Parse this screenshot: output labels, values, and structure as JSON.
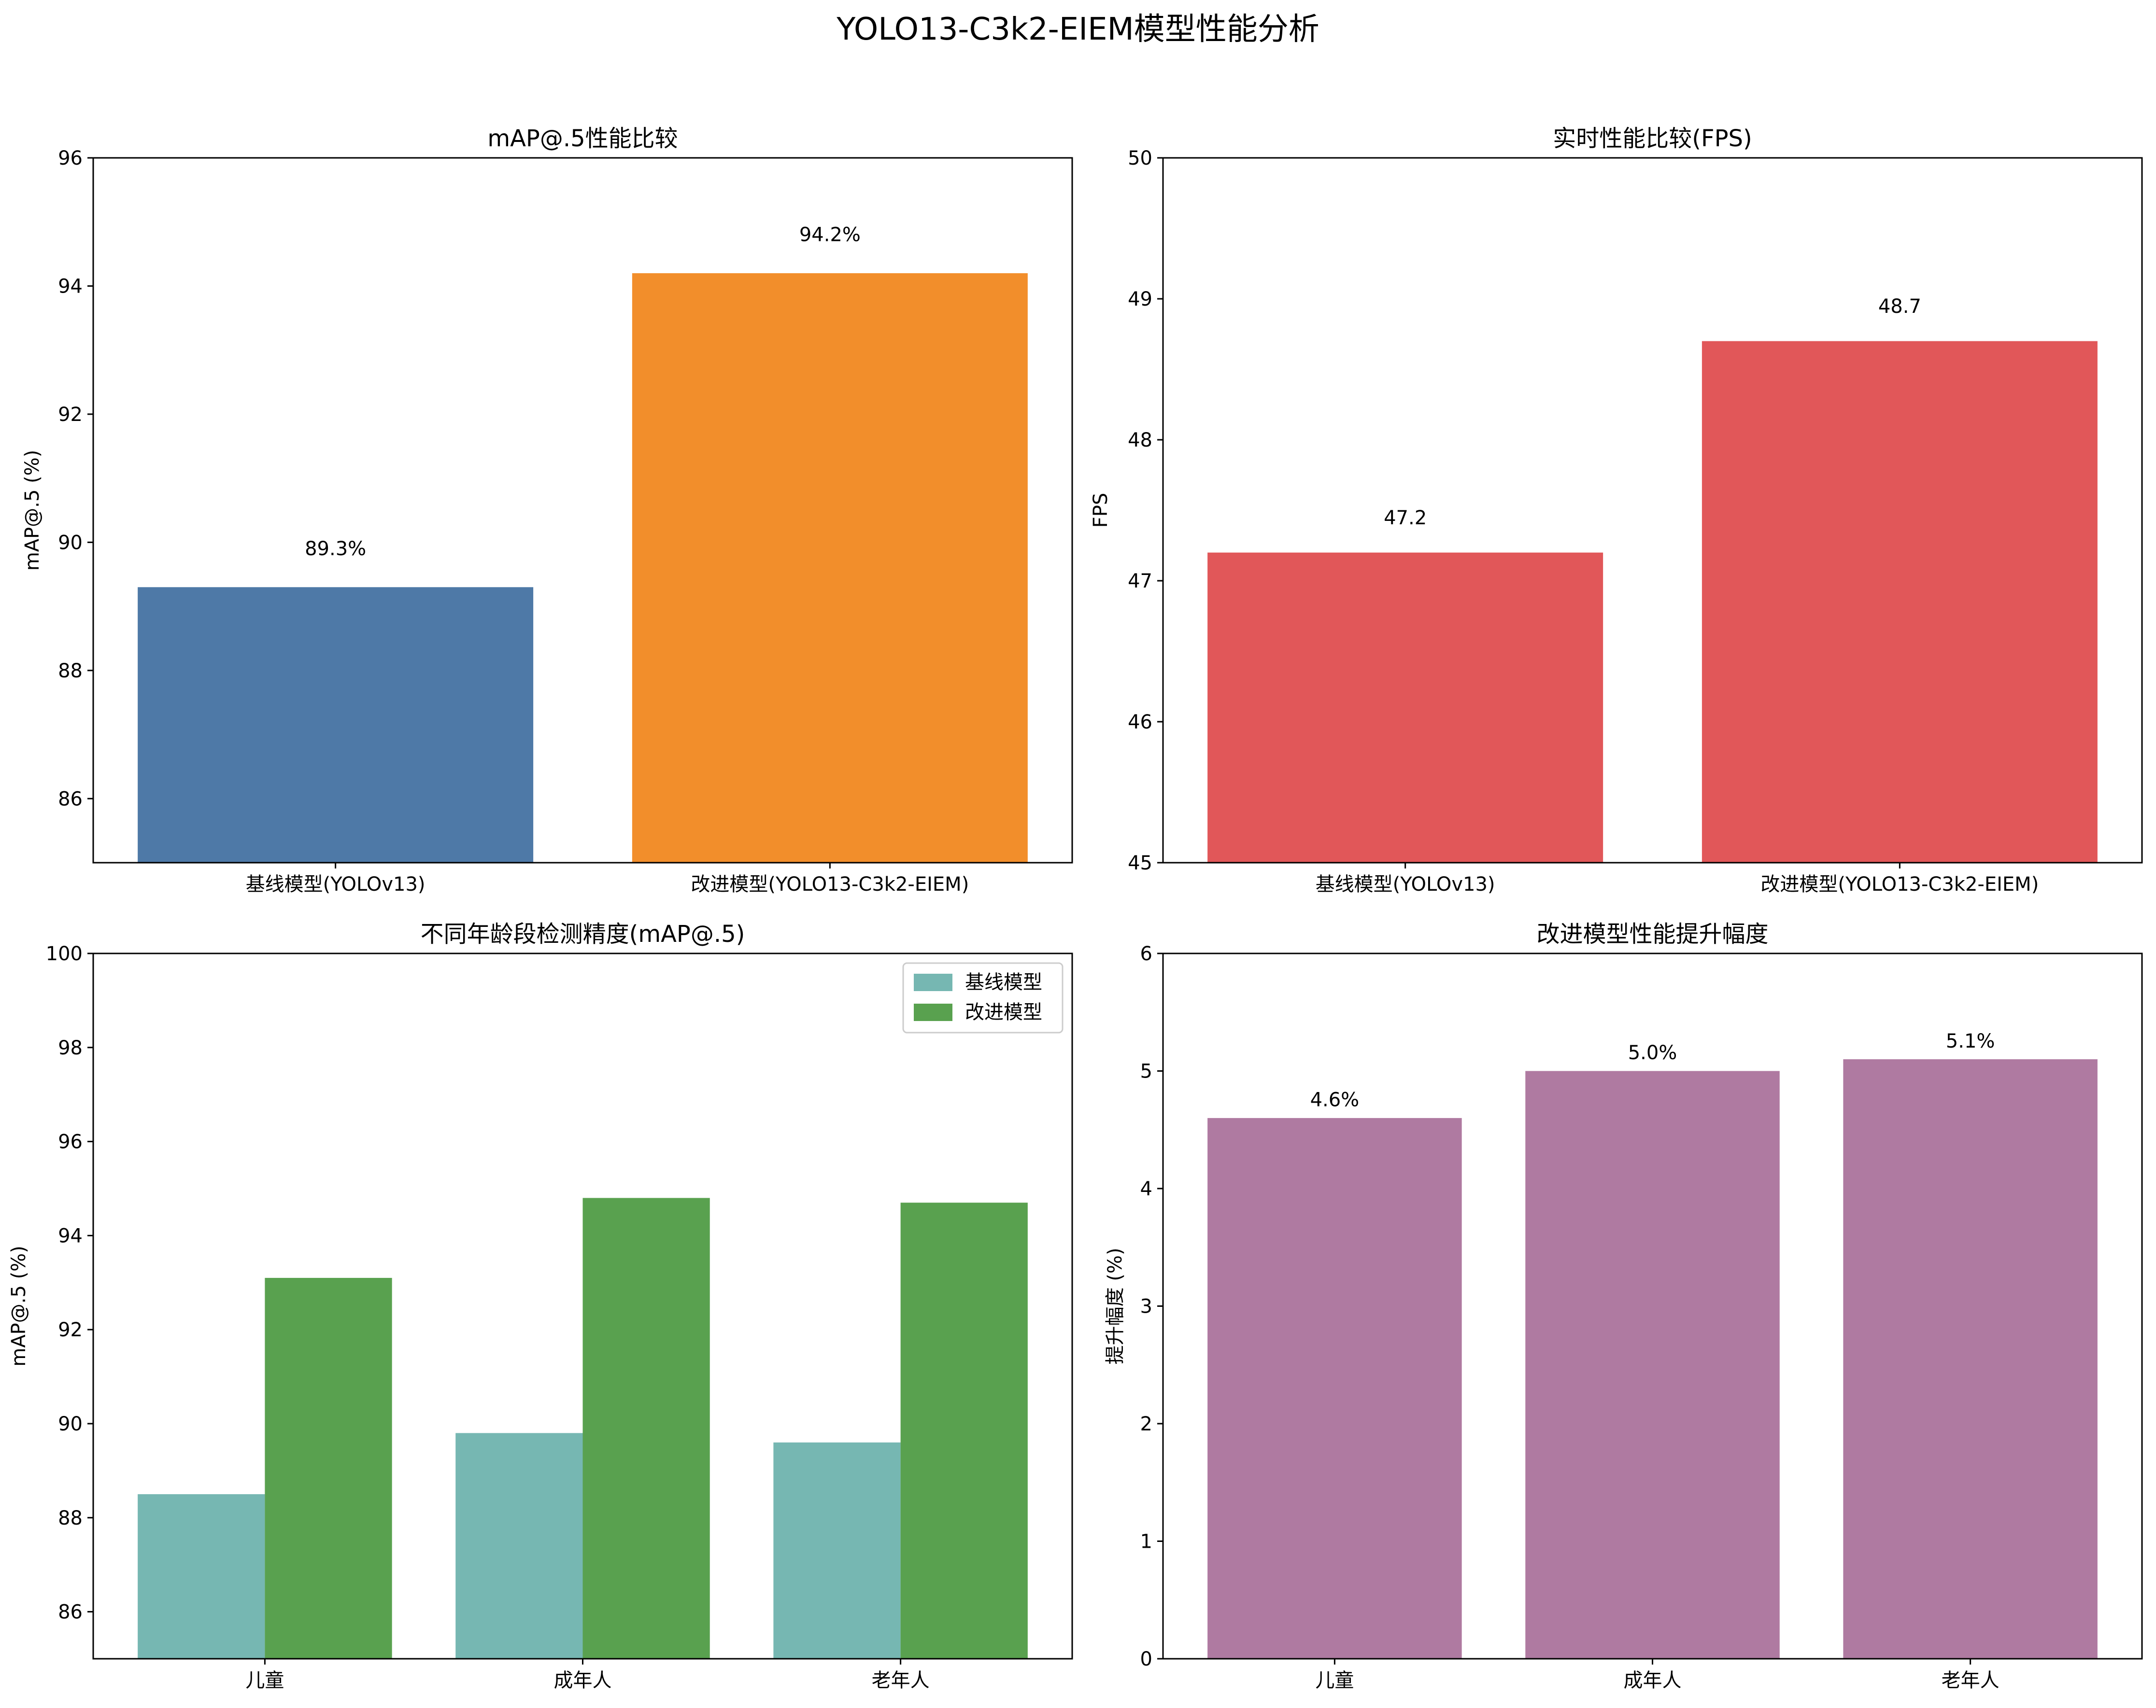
{
  "figure_title": "YOLO13-C3k2-EIEM模型性能分析",
  "colors": {
    "baseline_blue": "#4e79a7",
    "improved_orange": "#f28e2b",
    "fps_red": "#e15759",
    "teal": "#76b7b2",
    "green": "#59a14f",
    "purple": "#af7aa1"
  },
  "chart_data": [
    {
      "id": "map",
      "type": "bar",
      "title": "mAP@.5性能比较",
      "xlabel": "",
      "ylabel": "mAP@.5 (%)",
      "categories": [
        "基线模型(YOLOv13)",
        "改进模型(YOLO13-C3k2-EIEM)"
      ],
      "values": [
        89.3,
        94.2
      ],
      "value_labels": [
        "89.3%",
        "94.2%"
      ],
      "bar_colors": [
        "#4e79a7",
        "#f28e2b"
      ],
      "ylim": [
        85,
        96
      ],
      "yticks": [
        86,
        88,
        90,
        92,
        94,
        96
      ],
      "grid": false
    },
    {
      "id": "fps",
      "type": "bar",
      "title": "实时性能比较(FPS)",
      "xlabel": "",
      "ylabel": "FPS",
      "categories": [
        "基线模型(YOLOv13)",
        "改进模型(YOLO13-C3k2-EIEM)"
      ],
      "values": [
        47.2,
        48.7
      ],
      "value_labels": [
        "47.2",
        "48.7"
      ],
      "bar_colors": [
        "#e15759",
        "#e15759"
      ],
      "ylim": [
        45,
        50
      ],
      "yticks": [
        45,
        46,
        47,
        48,
        49,
        50
      ],
      "grid": false
    },
    {
      "id": "age",
      "type": "bar",
      "title": "不同年龄段检测精度(mAP@.5)",
      "xlabel": "",
      "ylabel": "mAP@.5 (%)",
      "categories": [
        "儿童",
        "成年人",
        "老年人"
      ],
      "series": [
        {
          "name": "基线模型",
          "values": [
            88.5,
            89.8,
            89.6
          ],
          "color": "#76b7b2"
        },
        {
          "name": "改进模型",
          "values": [
            93.1,
            94.8,
            94.7
          ],
          "color": "#59a14f"
        }
      ],
      "legend_position": "top-right",
      "ylim": [
        85,
        100
      ],
      "yticks": [
        86,
        88,
        90,
        92,
        94,
        96,
        98,
        100
      ],
      "grid": false
    },
    {
      "id": "gain",
      "type": "bar",
      "title": "改进模型性能提升幅度",
      "xlabel": "",
      "ylabel": "提升幅度 (%)",
      "categories": [
        "儿童",
        "成年人",
        "老年人"
      ],
      "values": [
        4.6,
        5.0,
        5.1
      ],
      "value_labels": [
        "4.6%",
        "5.0%",
        "5.1%"
      ],
      "bar_colors": [
        "#af7aa1",
        "#af7aa1",
        "#af7aa1"
      ],
      "ylim": [
        0,
        6
      ],
      "yticks": [
        0,
        1,
        2,
        3,
        4,
        5,
        6
      ],
      "grid": false
    }
  ]
}
